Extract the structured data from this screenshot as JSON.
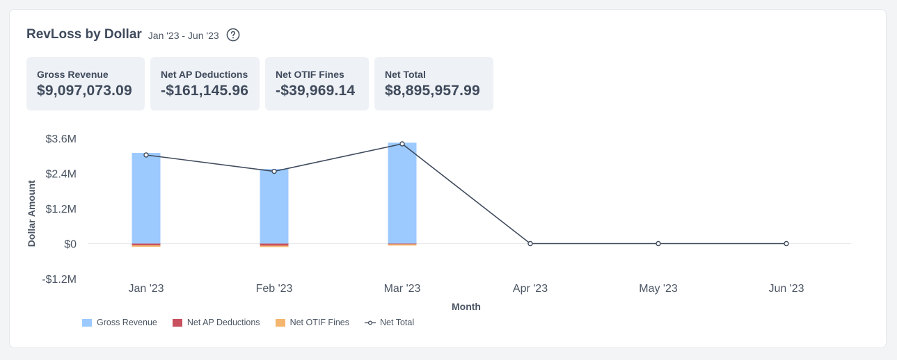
{
  "header": {
    "title": "RevLoss by Dollar",
    "date_range": "Jan '23 - Jun '23",
    "help_icon": "question-circle-icon"
  },
  "stats": [
    {
      "label": "Gross Revenue",
      "value": "$9,097,073.09"
    },
    {
      "label": "Net AP Deductions",
      "value": "-$161,145.96"
    },
    {
      "label": "Net OTIF Fines",
      "value": "-$39,969.14"
    },
    {
      "label": "Net Total",
      "value": "$8,895,957.99"
    }
  ],
  "colors": {
    "gross_revenue": "#9ccaff",
    "net_ap_deductions": "#c9505f",
    "net_otif_fines": "#f4b66e",
    "net_total": "#3f4a5c"
  },
  "chart_data": {
    "type": "bar",
    "title": "",
    "xlabel": "Month",
    "ylabel": "Dollar Amount",
    "categories": [
      "Jan '23",
      "Feb '23",
      "Mar '23",
      "Apr '23",
      "May '23",
      "Jun '23"
    ],
    "ylim": [
      -1200000,
      3600000
    ],
    "yticks": [
      -1200000,
      0,
      1200000,
      2400000,
      3600000
    ],
    "ytick_labels": [
      "-$1.2M",
      "$0",
      "$1.2M",
      "$2.4M",
      "$3.6M"
    ],
    "grid": "zero-line",
    "legend_position": "bottom-left",
    "series": [
      {
        "name": "Gross Revenue",
        "type": "bar",
        "values": [
          3100000,
          2550000,
          3450000,
          0,
          0,
          0
        ]
      },
      {
        "name": "Net AP Deductions",
        "type": "bar",
        "values": [
          -60000,
          -70000,
          -20000,
          0,
          0,
          0
        ]
      },
      {
        "name": "Net OTIF Fines",
        "type": "bar",
        "values": [
          -10000,
          -10000,
          -20000,
          0,
          0,
          0
        ]
      },
      {
        "name": "Net Total",
        "type": "line",
        "values": [
          3030000,
          2470000,
          3410000,
          0,
          0,
          0
        ]
      }
    ]
  }
}
